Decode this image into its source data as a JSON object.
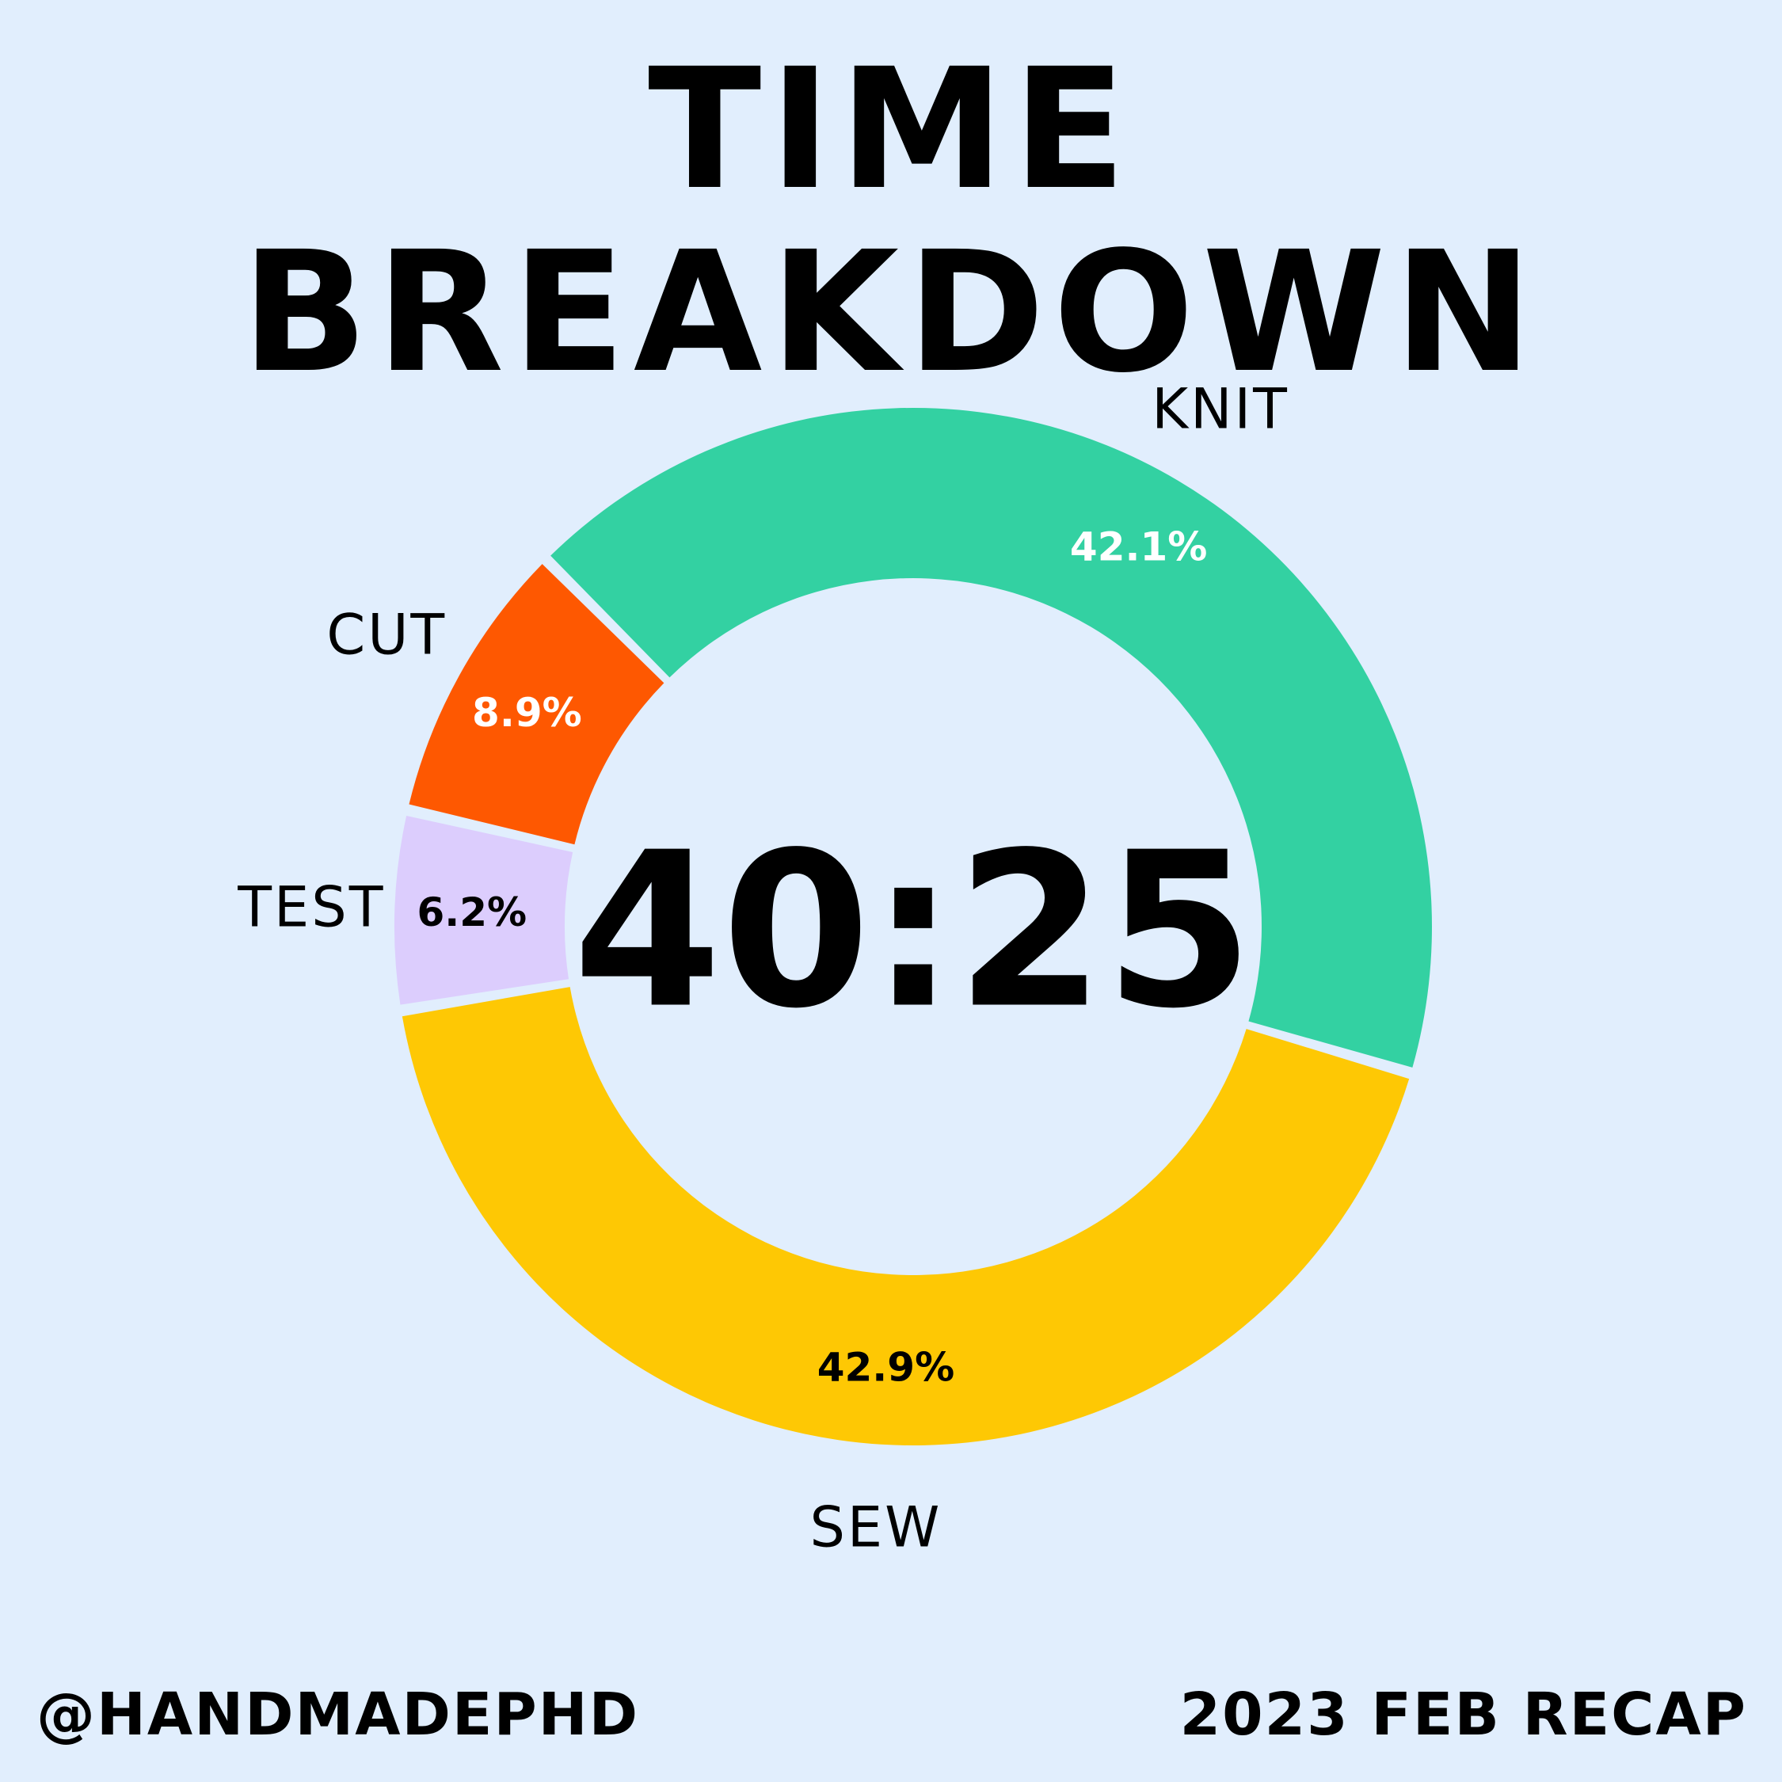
{
  "header": {
    "title": "TIME BREAKDOWN"
  },
  "center": {
    "total_time": "40:25"
  },
  "footer": {
    "handle": "@HANDMADEPHD",
    "recap": "2023 FEB RECAP"
  },
  "chart_data": {
    "type": "pie",
    "title": "TIME BREAKDOWN",
    "donut": true,
    "center_label": "40:25",
    "slices": [
      {
        "label": "KNIT",
        "value": 42.1,
        "value_label": "42.1%",
        "color": "#33d1a2",
        "value_text_color": "#ffffff"
      },
      {
        "label": "SEW",
        "value": 42.9,
        "value_label": "42.9%",
        "color": "#fec804",
        "value_text_color": "#000000"
      },
      {
        "label": "TEST",
        "value": 6.2,
        "value_label": "6.2%",
        "color": "#dccdfd",
        "value_text_color": "#000000"
      },
      {
        "label": "CUT",
        "value": 8.9,
        "value_label": "8.9%",
        "color": "#fe5801",
        "value_text_color": "#ffffff"
      }
    ],
    "legend": "none"
  }
}
